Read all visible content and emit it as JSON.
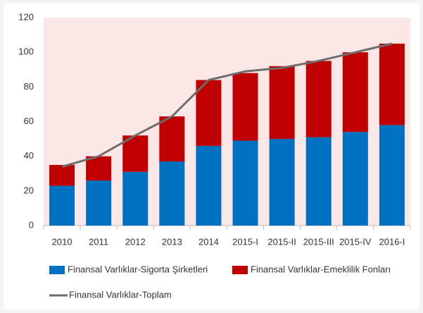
{
  "chart_data": {
    "type": "bar",
    "stacked": true,
    "grid": false,
    "legend": "bottom",
    "categories": [
      "2010",
      "2011",
      "2012",
      "2013",
      "2014",
      "2015-I",
      "2015-II",
      "2015-III",
      "2015-IV",
      "2016-I"
    ],
    "series": [
      {
        "name": "Finansal Varlıklar-Sigorta Şirketleri",
        "color": "#0070c0",
        "type": "bar",
        "values": [
          23,
          26,
          31,
          37,
          46,
          49,
          50,
          51,
          54,
          58
        ]
      },
      {
        "name": "Finansal Varlıklar-Emeklilik Fonları",
        "color": "#c00000",
        "type": "bar",
        "values": [
          12,
          14,
          21,
          26,
          38,
          39,
          42,
          44,
          46,
          47
        ]
      },
      {
        "name": "Finansal Varlıklar-Toplam",
        "color": "#6d6d6d",
        "type": "line",
        "values": [
          34,
          40,
          52,
          63,
          84,
          89,
          91,
          95,
          100,
          105
        ]
      }
    ],
    "ylim": [
      0,
      120
    ],
    "yticks": [
      0,
      20,
      40,
      60,
      80,
      100,
      120
    ]
  }
}
